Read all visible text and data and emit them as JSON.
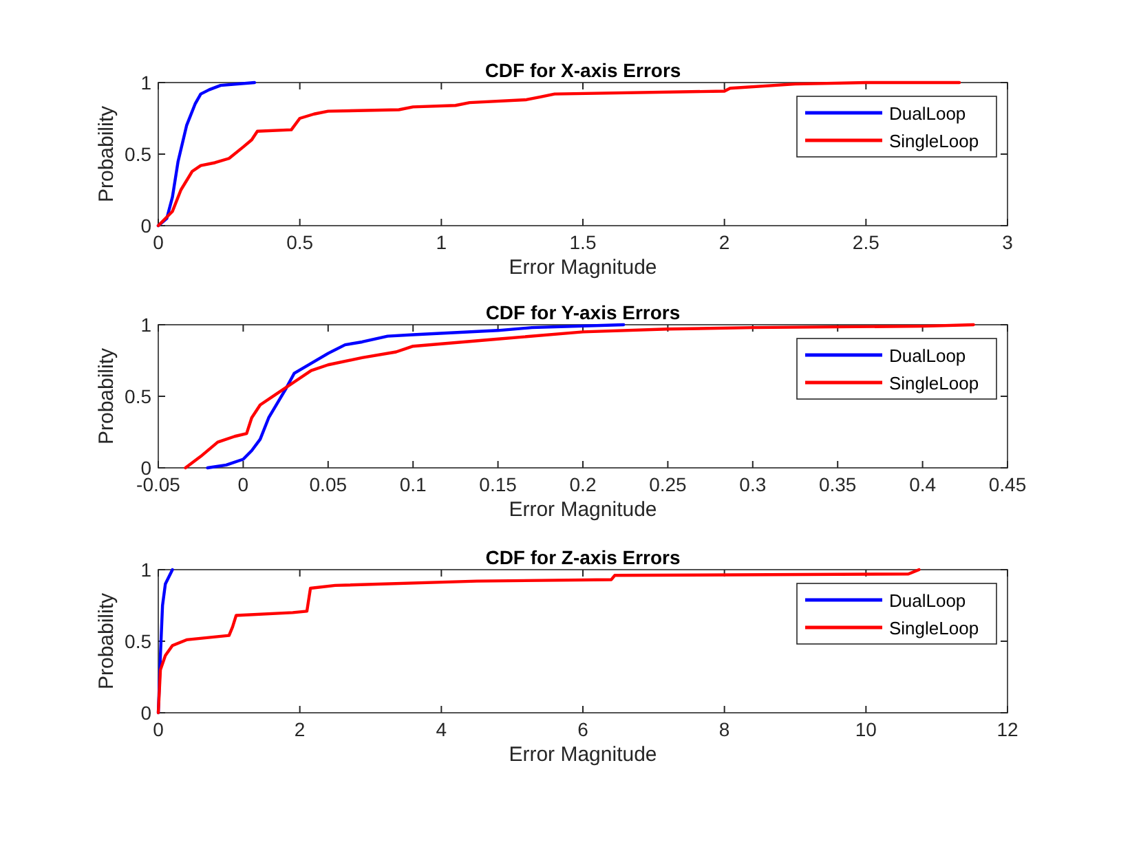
{
  "chart_data": [
    {
      "type": "line",
      "title": "CDF for X-axis Errors",
      "xlabel": "Error Magnitude",
      "ylabel": "Probability",
      "xlim": [
        0,
        3
      ],
      "xticks": [
        0,
        0.5,
        1,
        1.5,
        2,
        2.5,
        3
      ],
      "ylim": [
        0,
        1
      ],
      "yticks": [
        0,
        0.5,
        1
      ],
      "legend": "top right",
      "grid": false,
      "series": [
        {
          "name": "DualLoop",
          "color": "#0000ff",
          "x": [
            0,
            0.03,
            0.05,
            0.07,
            0.1,
            0.13,
            0.15,
            0.18,
            0.22,
            0.34
          ],
          "values": [
            0,
            0.05,
            0.2,
            0.45,
            0.7,
            0.85,
            0.92,
            0.95,
            0.98,
            1
          ]
        },
        {
          "name": "SingleLoop",
          "color": "#ff0000",
          "x": [
            0,
            0.05,
            0.08,
            0.12,
            0.15,
            0.2,
            0.25,
            0.3,
            0.33,
            0.35,
            0.47,
            0.5,
            0.55,
            0.6,
            0.85,
            0.9,
            1.05,
            1.1,
            1.3,
            1.35,
            1.4,
            2.0,
            2.02,
            2.25,
            2.5,
            2.83
          ],
          "values": [
            0,
            0.1,
            0.25,
            0.38,
            0.42,
            0.44,
            0.47,
            0.55,
            0.6,
            0.66,
            0.67,
            0.75,
            0.78,
            0.8,
            0.81,
            0.83,
            0.84,
            0.86,
            0.88,
            0.9,
            0.92,
            0.94,
            0.96,
            0.99,
            1.0,
            1.0
          ]
        }
      ]
    },
    {
      "type": "line",
      "title": "CDF for Y-axis Errors",
      "xlabel": "Error Magnitude",
      "ylabel": "Probability",
      "xlim": [
        -0.05,
        0.45
      ],
      "xticks": [
        -0.05,
        0,
        0.05,
        0.1,
        0.15,
        0.2,
        0.25,
        0.3,
        0.35,
        0.4,
        0.45
      ],
      "ylim": [
        0,
        1
      ],
      "yticks": [
        0,
        0.5,
        1
      ],
      "legend": "top right",
      "grid": false,
      "series": [
        {
          "name": "DualLoop",
          "color": "#0000ff",
          "x": [
            -0.021,
            -0.01,
            0,
            0.005,
            0.01,
            0.015,
            0.02,
            0.025,
            0.03,
            0.04,
            0.05,
            0.06,
            0.07,
            0.085,
            0.1,
            0.15,
            0.17,
            0.224
          ],
          "values": [
            0,
            0.02,
            0.06,
            0.12,
            0.2,
            0.35,
            0.45,
            0.55,
            0.66,
            0.73,
            0.8,
            0.86,
            0.88,
            0.92,
            0.93,
            0.96,
            0.98,
            1
          ]
        },
        {
          "name": "SingleLoop",
          "color": "#ff0000",
          "x": [
            -0.034,
            -0.025,
            -0.015,
            -0.005,
            0.002,
            0.005,
            0.01,
            0.02,
            0.03,
            0.04,
            0.05,
            0.07,
            0.09,
            0.1,
            0.15,
            0.2,
            0.25,
            0.3,
            0.4,
            0.43
          ],
          "values": [
            0,
            0.08,
            0.18,
            0.22,
            0.24,
            0.35,
            0.44,
            0.52,
            0.6,
            0.68,
            0.72,
            0.77,
            0.81,
            0.85,
            0.9,
            0.95,
            0.97,
            0.98,
            0.99,
            1
          ]
        }
      ]
    },
    {
      "type": "line",
      "title": "CDF for Z-axis Errors",
      "xlabel": "Error Magnitude",
      "ylabel": "Probability",
      "xlim": [
        0,
        12
      ],
      "xticks": [
        0,
        2,
        4,
        6,
        8,
        10,
        12
      ],
      "ylim": [
        0,
        1
      ],
      "yticks": [
        0,
        0.5,
        1
      ],
      "legend": "top right",
      "grid": false,
      "series": [
        {
          "name": "DualLoop",
          "color": "#0000ff",
          "x": [
            0,
            0.03,
            0.06,
            0.1,
            0.2
          ],
          "values": [
            0,
            0.4,
            0.75,
            0.9,
            1
          ]
        },
        {
          "name": "SingleLoop",
          "color": "#ff0000",
          "x": [
            0,
            0.03,
            0.1,
            0.2,
            0.4,
            1.0,
            1.05,
            1.1,
            1.9,
            2.1,
            2.15,
            2.5,
            4.5,
            6.4,
            6.45,
            10.6,
            10.75
          ],
          "values": [
            0,
            0.3,
            0.4,
            0.47,
            0.51,
            0.54,
            0.6,
            0.68,
            0.7,
            0.71,
            0.87,
            0.89,
            0.92,
            0.93,
            0.96,
            0.97,
            1
          ]
        }
      ]
    }
  ]
}
